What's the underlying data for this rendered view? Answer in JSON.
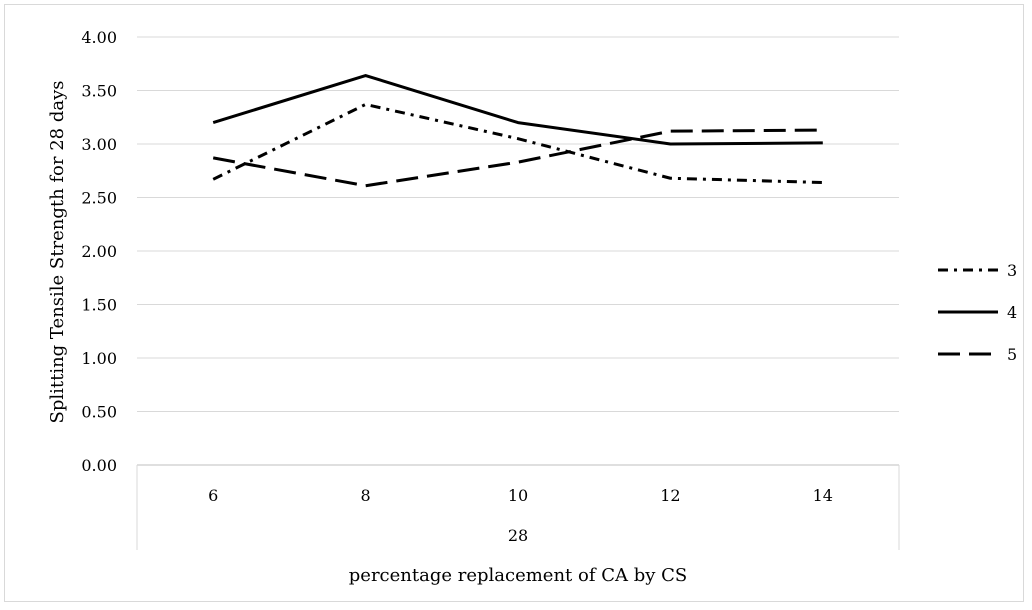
{
  "chart_data": {
    "type": "line",
    "title": "",
    "xlabel": "percentage replacement of CA by CS",
    "ylabel": "Splitting Tensile Strength for 28 days",
    "group_label": "28",
    "categories": [
      "6",
      "8",
      "10",
      "12",
      "14"
    ],
    "ylim": [
      0,
      4
    ],
    "yticks": [
      "0.00",
      "0.50",
      "1.00",
      "1.50",
      "2.00",
      "2.50",
      "3.00",
      "3.50",
      "4.00"
    ],
    "grid": true,
    "legend_position": "right",
    "series": [
      {
        "name": "3",
        "style": "dash-dot",
        "color": "#000000",
        "values": [
          2.67,
          3.37,
          3.05,
          2.68,
          2.64
        ]
      },
      {
        "name": "4",
        "style": "solid",
        "color": "#000000",
        "values": [
          3.2,
          3.64,
          3.2,
          3.0,
          3.01
        ]
      },
      {
        "name": "5",
        "style": "long-dash",
        "color": "#000000",
        "values": [
          2.87,
          2.61,
          2.83,
          3.12,
          3.13
        ]
      }
    ]
  }
}
